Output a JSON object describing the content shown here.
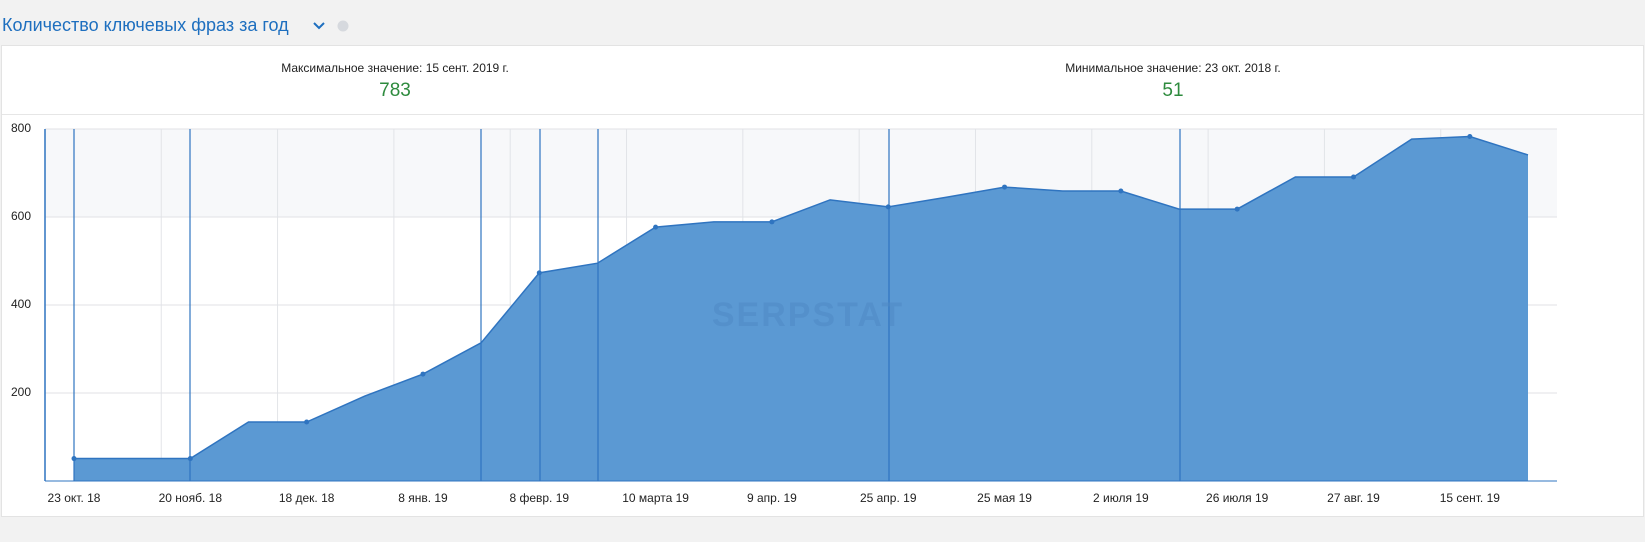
{
  "chart_data": {
    "type": "area",
    "title": "Количество ключевых фраз за год",
    "stats": [
      {
        "label": "Максимальное значение: 15 сент. 2019 г.",
        "value": 783
      },
      {
        "label": "Минимальное значение: 23 окт. 2018 г.",
        "value": 51
      }
    ],
    "watermark": "SERPSTAT",
    "categories": [
      "23 окт. 18",
      null,
      "20 нояб. 18",
      null,
      "18 дек. 18",
      null,
      "8 янв. 19",
      null,
      "8 февр. 19",
      null,
      "10 марта 19",
      null,
      "9 апр. 19",
      null,
      "25 апр. 19",
      null,
      "25 мая 19",
      null,
      "2 июля 19",
      null,
      "26 июля 19",
      null,
      "27 авг. 19",
      null,
      "15 сент. 19",
      null
    ],
    "values": [
      51,
      51,
      51,
      134,
      134,
      193,
      243,
      314,
      473,
      495,
      577,
      589,
      589,
      639,
      623,
      645,
      668,
      659,
      659,
      618,
      618,
      691,
      691,
      777,
      783,
      741
    ],
    "color": "#5b99d3",
    "line_color": "#2f74c0",
    "ylim": [
      0,
      800
    ],
    "yticks": [
      200,
      400,
      600,
      800
    ],
    "grid": true
  }
}
